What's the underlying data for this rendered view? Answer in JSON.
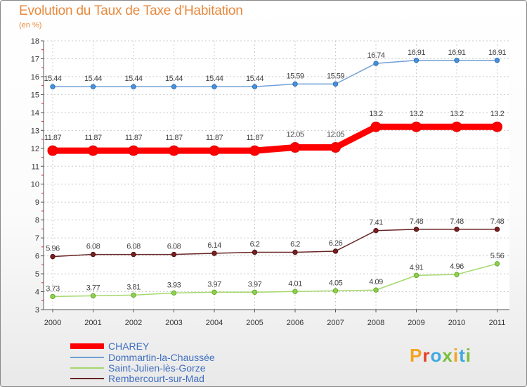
{
  "chart_data": {
    "type": "line",
    "title": "Evolution du Taux de Taxe d'Habitation",
    "subtitle": "(en %)",
    "xlabel": "",
    "ylabel": "",
    "categories": [
      "2000",
      "2001",
      "2002",
      "2003",
      "2004",
      "2005",
      "2006",
      "2007",
      "2008",
      "2009",
      "2010",
      "2011"
    ],
    "ylim": [
      3,
      18
    ],
    "yticks": [
      "3",
      "4",
      "5",
      "6",
      "7",
      "8",
      "9",
      "10",
      "11",
      "12",
      "13",
      "14",
      "15",
      "16",
      "17",
      "18"
    ],
    "series": [
      {
        "name": "CHAREY",
        "color": "#ff0000",
        "values": [
          11.87,
          11.87,
          11.87,
          11.87,
          11.87,
          11.87,
          12.05,
          12.05,
          13.2,
          13.2,
          13.2,
          13.2
        ],
        "labels": [
          "11.87",
          "11.87",
          "11.87",
          "11.87",
          "11.87",
          "11.87",
          "12.05",
          "12.05",
          "13.2",
          "13.2",
          "13.2",
          "13.2"
        ]
      },
      {
        "name": "Dommartin-la-Chaussée",
        "color": "#6fa0d6",
        "values": [
          15.44,
          15.44,
          15.44,
          15.44,
          15.44,
          15.44,
          15.59,
          15.59,
          16.74,
          16.91,
          16.91,
          16.91
        ],
        "labels": [
          "15.44",
          "15.44",
          "15.44",
          "15.44",
          "15.44",
          "15.44",
          "15.59",
          "15.59",
          "16.74",
          "16.91",
          "16.91",
          "16.91"
        ]
      },
      {
        "name": "Saint-Julien-lès-Gorze",
        "color": "#a4d86c",
        "values": [
          3.73,
          3.77,
          3.81,
          3.93,
          3.97,
          3.97,
          4.01,
          4.05,
          4.09,
          4.91,
          4.96,
          5.56
        ],
        "labels": [
          "3.73",
          "3.77",
          "3.81",
          "3.93",
          "3.97",
          "3.97",
          "4.01",
          "4.05",
          "4.09",
          "4.91",
          "4.96",
          "5.56"
        ]
      },
      {
        "name": "Rembercourt-sur-Mad",
        "color": "#6a2626",
        "values": [
          5.96,
          6.08,
          6.08,
          6.08,
          6.14,
          6.2,
          6.2,
          6.26,
          7.41,
          7.48,
          7.48,
          7.48
        ],
        "labels": [
          "5.96",
          "6.08",
          "6.08",
          "6.08",
          "6.14",
          "6.2",
          "6.2",
          "6.26",
          "7.41",
          "7.48",
          "7.48",
          "7.48"
        ]
      }
    ]
  },
  "logo": {
    "text": "Proxiti",
    "letters": [
      "P",
      "r",
      "o",
      "x",
      "i",
      "t",
      "i"
    ],
    "colors": [
      "#f5a323",
      "#e7412b",
      "#3fa9e0",
      "#7bbf3a",
      "#f5a323",
      "#3fa9e0",
      "#7bbf3a"
    ]
  }
}
